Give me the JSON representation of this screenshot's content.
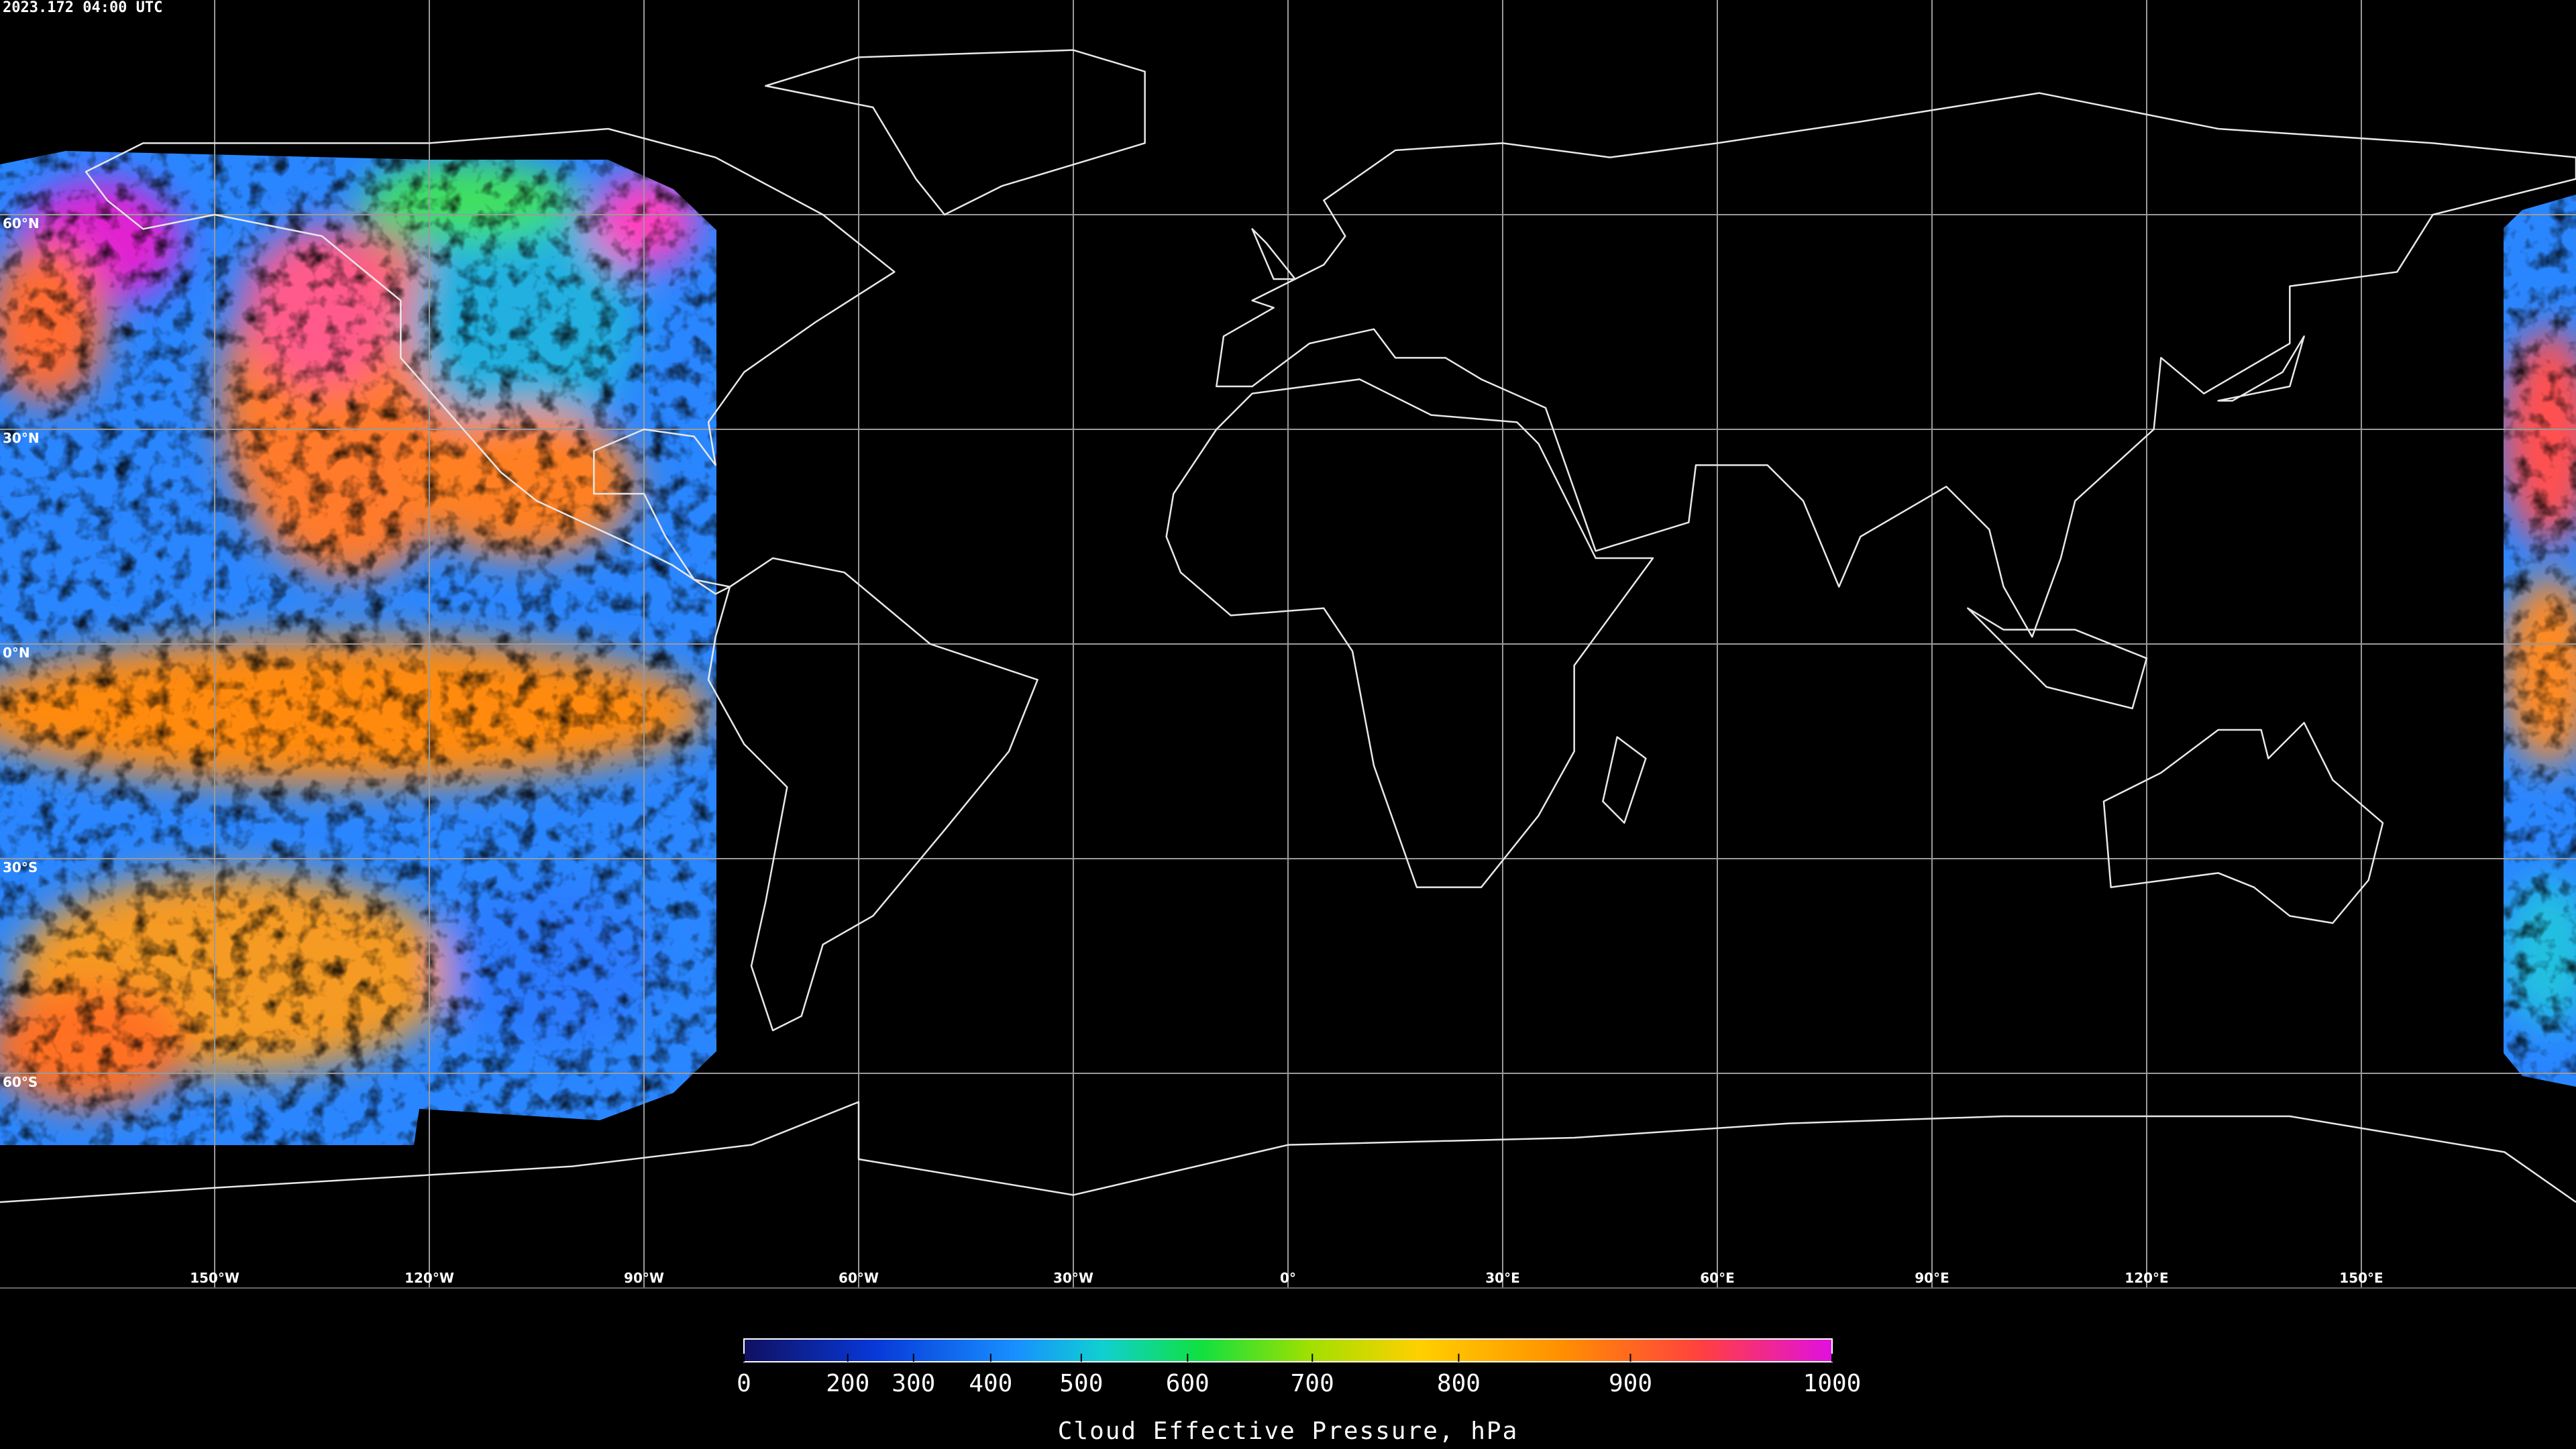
{
  "title": "2023.172 04:00 UTC",
  "map": {
    "latitude_labels": [
      "60°N",
      "30°N",
      "0°N",
      "30°S",
      "60°S"
    ],
    "longitude_labels": [
      "150°W",
      "120°W",
      "90°W",
      "60°W",
      "30°W",
      "0°",
      "30°E",
      "60°E",
      "90°E",
      "120°E",
      "150°E"
    ]
  },
  "colorbar": {
    "label": "Cloud Effective Pressure, hPa",
    "range": [
      0,
      1000
    ],
    "ticks": [
      0,
      200,
      300,
      400,
      500,
      600,
      700,
      800,
      900,
      1000
    ]
  }
}
